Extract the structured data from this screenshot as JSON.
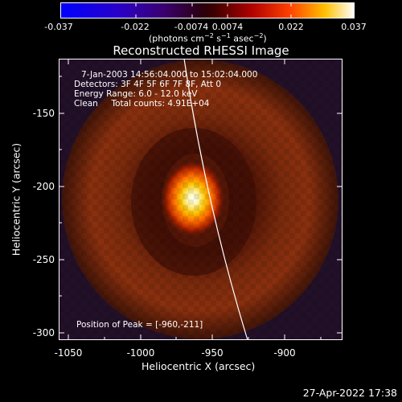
{
  "colorbar": {
    "ticks": [
      "-0.037",
      "-0.022",
      "-0.0074",
      "0.0074",
      "0.022",
      "0.037"
    ],
    "units_main": "(photons cm",
    "units_exp1": "−2",
    "units_mid": " s",
    "units_exp2": "−1",
    "units_end": " asec",
    "units_exp3": "−2",
    "units_close": ")"
  },
  "title": "Reconstructed RHESSI Image",
  "info": {
    "line1": "7-Jan-2003 14:56:04.000 to 15:02:04.000",
    "line2": "Detectors: 3F 4F 5F 6F 7F 8F, Att 0",
    "line3": "Energy Range: 6.0 - 12.0 keV",
    "line4": "Clean     Total counts: 4.91E+04",
    "peak": "Position of Peak = [-960,-211]"
  },
  "axes": {
    "ylabel": "Heliocentric Y (arcsec)",
    "xlabel": "Heliocentric X (arcsec)",
    "yticks": [
      "-150",
      "-200",
      "-250",
      "-300"
    ],
    "xticks": [
      "-1050",
      "-1000",
      "-950",
      "-900"
    ]
  },
  "footer": "27-Apr-2022 17:38",
  "colors": {
    "background": "#000000",
    "text": "#ffffff",
    "limb": "#ffffff"
  },
  "image_description_hint": "flare-map"
}
